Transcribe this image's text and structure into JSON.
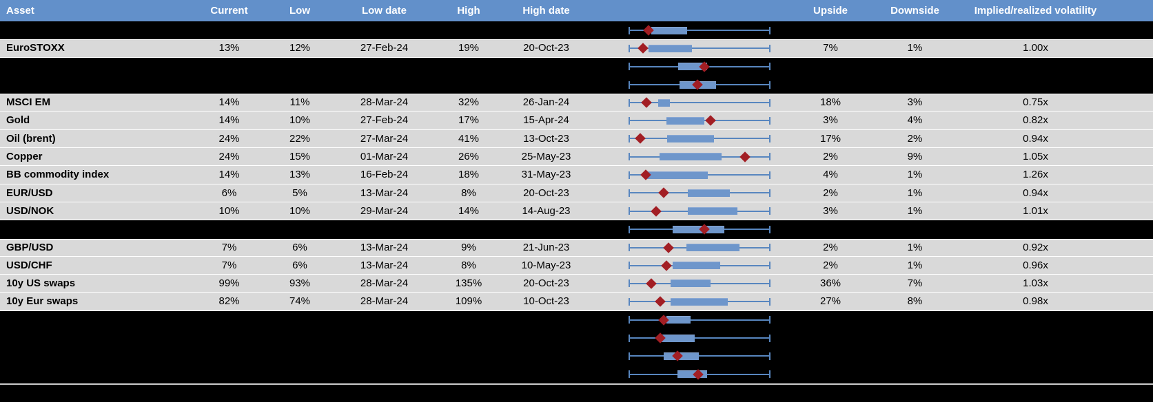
{
  "colors": {
    "header_bg": "#6290ca",
    "header_text": "#ffffff",
    "row_gray": "#d9d9d9",
    "row_black": "#000000",
    "gridline": "#ffffff",
    "box_fill": "#6e96cb",
    "whisker": "#5886bf",
    "diamond": "#a21e24",
    "separator": "#cccccc",
    "body_text": "#000000"
  },
  "chart_data": {
    "type": "table",
    "columns": [
      "Asset",
      "Current",
      "Low",
      "Low date",
      "High",
      "High date",
      "",
      "Upside",
      "Downside",
      "Implied/realized volatility"
    ],
    "boxplot_scale": "each row sparkline spans its own low-high range, whisker 0 to 1, box = interquartile band, diamond = current level",
    "rows": [
      {
        "type": "spacer",
        "plot": {
          "box": [
            0.156,
            0.411
          ],
          "diamond": 0.137
        }
      },
      {
        "type": "data",
        "asset": "EuroSTOXX",
        "current": "13%",
        "low": "12%",
        "low_date": "27-Feb-24",
        "high": "19%",
        "high_date": "20-Oct-23",
        "upside": "7%",
        "downside": "1%",
        "implied": "1.00x",
        "plot": {
          "box": [
            0.137,
            0.445
          ],
          "diamond": 0.096
        }
      },
      {
        "type": "spacer",
        "plot": {
          "box": [
            0.349,
            0.556
          ],
          "diamond": 0.536
        }
      },
      {
        "type": "spacer",
        "plot": {
          "box": [
            0.36,
            0.618
          ],
          "diamond": 0.483
        }
      },
      {
        "type": "data",
        "asset": "MSCI EM",
        "current": "14%",
        "low": "11%",
        "low_date": "28-Mar-24",
        "high": "32%",
        "high_date": "26-Jan-24",
        "upside": "18%",
        "downside": "3%",
        "implied": "0.75x",
        "plot": {
          "box": [
            0.205,
            0.292
          ],
          "diamond": 0.121
        }
      },
      {
        "type": "data",
        "asset": "Gold",
        "current": "14%",
        "low": "10%",
        "low_date": "27-Feb-24",
        "high": "17%",
        "high_date": "15-Apr-24",
        "upside": "3%",
        "downside": "4%",
        "implied": "0.82x",
        "plot": {
          "box": [
            0.263,
            0.532
          ],
          "diamond": 0.576
        }
      },
      {
        "type": "data",
        "asset": "Oil (brent)",
        "current": "24%",
        "low": "22%",
        "low_date": "27-Mar-24",
        "high": "41%",
        "high_date": "13-Oct-23",
        "upside": "17%",
        "downside": "2%",
        "implied": "0.94x",
        "plot": {
          "box": [
            0.267,
            0.601
          ],
          "diamond": 0.08
        }
      },
      {
        "type": "data",
        "asset": "Copper",
        "current": "24%",
        "low": "15%",
        "low_date": "01-Mar-24",
        "high": "26%",
        "high_date": "25-May-23",
        "upside": "2%",
        "downside": "9%",
        "implied": "1.05x",
        "plot": {
          "box": [
            0.217,
            0.659
          ],
          "diamond": 0.822
        }
      },
      {
        "type": "data",
        "asset": "BB commodity index",
        "current": "14%",
        "low": "13%",
        "low_date": "16-Feb-24",
        "high": "18%",
        "high_date": "31-May-23",
        "upside": "4%",
        "downside": "1%",
        "implied": "1.26x",
        "plot": {
          "box": [
            0.129,
            0.559
          ],
          "diamond": 0.116
        }
      },
      {
        "type": "data",
        "asset": "EUR/USD",
        "current": "6%",
        "low": "5%",
        "low_date": "13-Mar-24",
        "high": "8%",
        "high_date": "20-Oct-23",
        "upside": "2%",
        "downside": "1%",
        "implied": "0.94x",
        "plot": {
          "box": [
            0.414,
            0.715
          ],
          "diamond": 0.243
        }
      },
      {
        "type": "data",
        "asset": "USD/NOK",
        "current": "10%",
        "low": "10%",
        "low_date": "29-Mar-24",
        "high": "14%",
        "high_date": "14-Aug-23",
        "upside": "3%",
        "downside": "1%",
        "implied": "1.01x",
        "plot": {
          "box": [
            0.414,
            0.768
          ],
          "diamond": 0.189
        }
      },
      {
        "type": "spacer",
        "plot": {
          "box": [
            0.308,
            0.678
          ],
          "diamond": 0.532
        }
      },
      {
        "type": "data",
        "asset": "GBP/USD",
        "current": "7%",
        "low": "6%",
        "low_date": "13-Mar-24",
        "high": "9%",
        "high_date": "21-Jun-23",
        "upside": "2%",
        "downside": "1%",
        "implied": "0.92x",
        "plot": {
          "box": [
            0.409,
            0.784
          ],
          "diamond": 0.279
        }
      },
      {
        "type": "data",
        "asset": "USD/CHF",
        "current": "7%",
        "low": "6%",
        "low_date": "13-Mar-24",
        "high": "8%",
        "high_date": "10-May-23",
        "upside": "2%",
        "downside": "1%",
        "implied": "0.96x",
        "plot": {
          "box": [
            0.308,
            0.649
          ],
          "diamond": 0.263
        }
      },
      {
        "type": "data",
        "asset": "10y US swaps",
        "current": "99%",
        "low": "93%",
        "low_date": "28-Mar-24",
        "high": "135%",
        "high_date": "20-Oct-23",
        "upside": "36%",
        "downside": "7%",
        "implied": "1.03x",
        "plot": {
          "box": [
            0.292,
            0.58
          ],
          "diamond": 0.156
        }
      },
      {
        "type": "data",
        "asset": "10y Eur swaps",
        "current": "82%",
        "low": "74%",
        "low_date": "28-Mar-24",
        "high": "109%",
        "high_date": "10-Oct-23",
        "upside": "27%",
        "downside": "8%",
        "implied": "0.98x",
        "plot": {
          "box": [
            0.292,
            0.699
          ],
          "diamond": 0.222
        }
      },
      {
        "type": "spacer",
        "plot": {
          "box": [
            0.263,
            0.434
          ],
          "diamond": 0.243
        }
      },
      {
        "type": "spacer",
        "plot": {
          "box": [
            0.23,
            0.466
          ],
          "diamond": 0.222
        }
      },
      {
        "type": "spacer",
        "plot": {
          "box": [
            0.243,
            0.494
          ],
          "diamond": 0.344
        }
      },
      {
        "type": "spacer",
        "plot": {
          "box": [
            0.344,
            0.553
          ],
          "diamond": 0.491
        }
      }
    ]
  }
}
